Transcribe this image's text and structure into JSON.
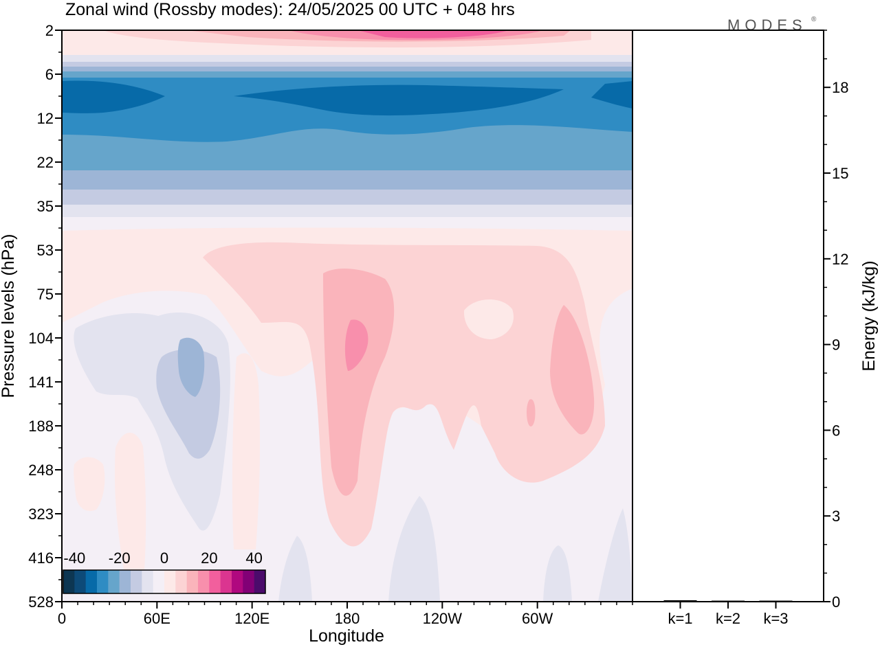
{
  "title": "Zonal wind (Rossby modes):  24/05/2025  00 UTC  + 048 hrs",
  "brand": "MODES",
  "brand_mark": "®",
  "chart_data": [
    {
      "type": "heatmap",
      "xlabel": "Longitude",
      "ylabel": "Pressure levels (hPa)",
      "x_ticks": [
        "0",
        "60E",
        "120E",
        "180",
        "120W",
        "60W"
      ],
      "x_tick_values": [
        0,
        60,
        120,
        180,
        240,
        300
      ],
      "xlim": [
        0,
        360
      ],
      "y_ticks": [
        "2",
        "6",
        "12",
        "22",
        "35",
        "53",
        "75",
        "104",
        "141",
        "188",
        "248",
        "323",
        "416",
        "528"
      ],
      "colorbar": {
        "tick_labels": [
          "-40",
          "-20",
          "0",
          "20",
          "40"
        ],
        "tick_values": [
          -40,
          -20,
          0,
          20,
          40
        ],
        "levels": [
          -45,
          -40,
          -35,
          -30,
          -25,
          -20,
          -15,
          -10,
          -5,
          0,
          5,
          10,
          15,
          20,
          25,
          30,
          35,
          40,
          45
        ],
        "colors": [
          "#0d3652",
          "#0d4a78",
          "#076aa8",
          "#2f8cc3",
          "#66a5cb",
          "#9db5d6",
          "#c4cbe2",
          "#e3e3ef",
          "#f4eff6",
          "#fde9e8",
          "#fcd3d4",
          "#fab4bb",
          "#f88fac",
          "#f25f9d",
          "#db3590",
          "#b0087f",
          "#820076",
          "#4b0b6b"
        ]
      },
      "features": [
        {
          "label": "upper easterly jet",
          "level_range": [
            "6",
            "22"
          ],
          "value_approx": -25
        },
        {
          "label": "lower easterly band",
          "level_range": [
            "22",
            "35"
          ],
          "value_approx": -15
        },
        {
          "label": "upper westerly core",
          "level": "2",
          "longitude": 215,
          "value_approx": 30
        },
        {
          "label": "westerly maximum",
          "level": "104",
          "longitude": 183,
          "value_approx": 20
        },
        {
          "label": "westerly maximum",
          "level": "141",
          "longitude": 282,
          "value_approx": 15
        },
        {
          "label": "easterly minimum",
          "level": "141",
          "longitude": 80,
          "value_approx": -15
        }
      ]
    },
    {
      "type": "bar",
      "categories": [
        "k=1",
        "k=2",
        "k=3"
      ],
      "values": [
        0.05,
        0.03,
        0.03
      ],
      "ylabel": "Energy (kJ/kg)",
      "y_ticks": [
        "0",
        "3",
        "6",
        "9",
        "12",
        "15",
        "18"
      ],
      "ylim": [
        0,
        20
      ]
    }
  ]
}
